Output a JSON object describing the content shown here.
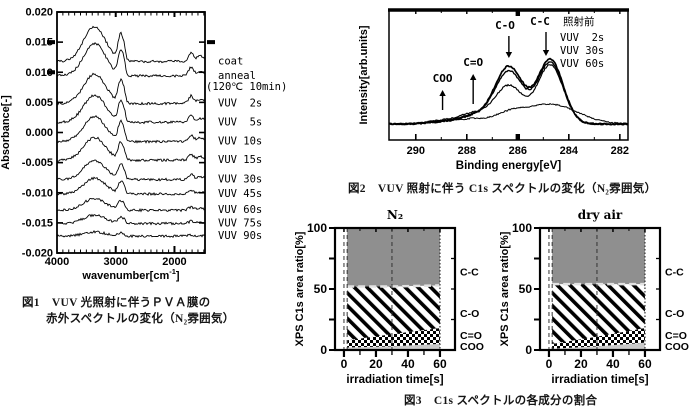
{
  "page": {
    "background": "#ffffff"
  },
  "figure1": {
    "caption_label": "図1",
    "caption_line1": "VUV 光照射に伴うＰＶＡ膜の",
    "caption_line2": "赤外スペクトルの変化（N₂雰囲気）"
  },
  "figure2": {
    "caption_label": "図2",
    "caption": "VUV 照射に伴う C1s スペクトルの変化（N₂雰囲気）"
  },
  "figure3": {
    "caption_label": "図3",
    "caption": "C1s スペクトルの各成分の割合"
  },
  "colors": {
    "line": "#000000",
    "cc_fill": "#8f8f8f",
    "coo_fill": "#c9c9c9",
    "background": "#ffffff"
  },
  "chart_data": [
    {
      "id": "fig1",
      "type": "line",
      "title": "",
      "xlabel_main": "wavenumber[cm",
      "xlabel_sup": "-1",
      "xlabel_close": "]",
      "ylabel": "Absorbance[-]",
      "xlim": [
        4000,
        1480
      ],
      "ylim": [
        -0.02,
        0.02
      ],
      "xticks": [
        4000,
        3000,
        2000
      ],
      "yticks": [
        "0.020",
        "0.015",
        "0.010",
        "0.005",
        "0.000",
        "-0.005",
        "-0.010",
        "-0.015",
        "-0.020"
      ],
      "series": [
        {
          "label": "coat",
          "offset": 0.0118,
          "scale": 1.0
        },
        {
          "label": "anneal",
          "label2": "(120℃ 10min)",
          "offset": 0.0094,
          "scale": 0.93
        },
        {
          "label": "VUV  2s",
          "offset": 0.0048,
          "scale": 0.84
        },
        {
          "label": "VUV  5s",
          "offset": 0.0017,
          "scale": 0.78
        },
        {
          "label": "VUV 10s",
          "offset": -0.0015,
          "scale": 0.72
        },
        {
          "label": "VUV 15s",
          "offset": -0.0046,
          "scale": 0.65
        },
        {
          "label": "VUV 30s",
          "offset": -0.0078,
          "scale": 0.55
        },
        {
          "label": "VUV 45s",
          "offset": -0.0102,
          "scale": 0.45
        },
        {
          "label": "VUV 60s",
          "offset": -0.0129,
          "scale": 0.34
        },
        {
          "label": "VUV 75s",
          "offset": -0.0151,
          "scale": 0.24
        },
        {
          "label": "VUV 90s",
          "offset": -0.0172,
          "scale": 0.12
        }
      ],
      "peaks": [
        {
          "center": 3360,
          "width": 185,
          "amp": 0.0058
        },
        {
          "center": 2920,
          "width": 40,
          "amp": 0.0042
        },
        {
          "center": 2858,
          "width": 28,
          "amp": 0.0018
        },
        {
          "center": 1718,
          "width": 42,
          "amp": 0.0015
        },
        {
          "center": 1565,
          "width": 55,
          "amp": 0.0009
        },
        {
          "center": 1428,
          "width": 34,
          "amp": 0.0019
        }
      ],
      "noise_amp": 0.0002
    },
    {
      "id": "fig2",
      "type": "line",
      "xlabel": "Binding energy[eV]",
      "ylabel": "Intensity[arb.units]",
      "xlim": [
        291.05,
        281.68
      ],
      "xticks": [
        290,
        288,
        286,
        284,
        282
      ],
      "peak_centers": {
        "cc": 284.72,
        "co": 286.35,
        "c2o": 287.75,
        "coo": 288.95
      },
      "series": [
        {
          "name": "照射前",
          "cc": 0.97,
          "co": 0.87,
          "c2o": 0.11,
          "coo": 0.03,
          "wcc": 0.5
        },
        {
          "name": "VUV  2s",
          "cc": 0.93,
          "co": 0.8,
          "c2o": 0.12,
          "coo": 0.04,
          "wcc": 0.5
        },
        {
          "name": "VUV 30s",
          "cc": 0.89,
          "co": 0.58,
          "c2o": 0.15,
          "coo": 0.05,
          "wcc": 0.5
        },
        {
          "name": "VUV 60s",
          "cc": 0.3,
          "co": 0.12,
          "c2o": 0.07,
          "coo": 0.04,
          "wcc": 1.05
        }
      ],
      "annotations": [
        {
          "text": "COO",
          "x": 288.95,
          "dir": "up"
        },
        {
          "text": "C=O",
          "x": 287.75,
          "dir": "up"
        },
        {
          "text": "C-O",
          "x": 286.35,
          "dir": "down"
        },
        {
          "text": "C-C",
          "x": 284.8,
          "dir": "down"
        }
      ]
    },
    {
      "id": "fig3a",
      "type": "area",
      "title": "N₂",
      "xlabel": "irradiation time[s]",
      "ylabel": "XPS C1s area ratio[%]",
      "xlim": [
        -5.6,
        69.4
      ],
      "ylim": [
        0,
        100
      ],
      "xticks": [
        0,
        20,
        40,
        60
      ],
      "yticks": [
        0,
        50,
        100
      ],
      "x": [
        2,
        30,
        60
      ],
      "series": [
        {
          "name": "COO",
          "values": [
            2,
            3,
            5
          ],
          "style": "lightgray"
        },
        {
          "name": "C=O",
          "values": [
            6,
            10,
            13
          ],
          "style": "checker"
        },
        {
          "name": "C-O",
          "values": [
            44,
            39,
            35
          ],
          "style": "hatch"
        },
        {
          "name": "C-C",
          "values": [
            48,
            48,
            47
          ],
          "style": "gray"
        }
      ],
      "dashed_x": [
        0,
        2,
        30
      ],
      "dotted_x": 60,
      "right_labels": [
        {
          "text": "C-C",
          "v": 64
        },
        {
          "text": "C-O",
          "v": 30
        },
        {
          "text": "C=O",
          "v": 12
        },
        {
          "text": "COO",
          "v": 3
        }
      ]
    },
    {
      "id": "fig3b",
      "type": "area",
      "title": "dry air",
      "xlabel": "irradiation time[s]",
      "ylabel": "XPS C1s area ratio[%]",
      "xlim": [
        -5.6,
        69.4
      ],
      "ylim": [
        0,
        100
      ],
      "xticks": [
        0,
        20,
        40,
        60
      ],
      "yticks": [
        0,
        50,
        100
      ],
      "x": [
        2,
        30,
        60
      ],
      "series": [
        {
          "name": "COO",
          "values": [
            1,
            3,
            6
          ],
          "style": "lightgray"
        },
        {
          "name": "C=O",
          "values": [
            4,
            8,
            12
          ],
          "style": "checker"
        },
        {
          "name": "C-O",
          "values": [
            49,
            43,
            36
          ],
          "style": "hatch"
        },
        {
          "name": "C-C",
          "values": [
            46,
            46,
            46
          ],
          "style": "gray"
        }
      ],
      "dashed_x": [
        0,
        2,
        30
      ],
      "dotted_x": 60,
      "right_labels": [
        {
          "text": "C-C",
          "v": 64
        },
        {
          "text": "C-O",
          "v": 30
        },
        {
          "text": "C=O",
          "v": 12
        },
        {
          "text": "COO",
          "v": 3
        }
      ]
    }
  ]
}
